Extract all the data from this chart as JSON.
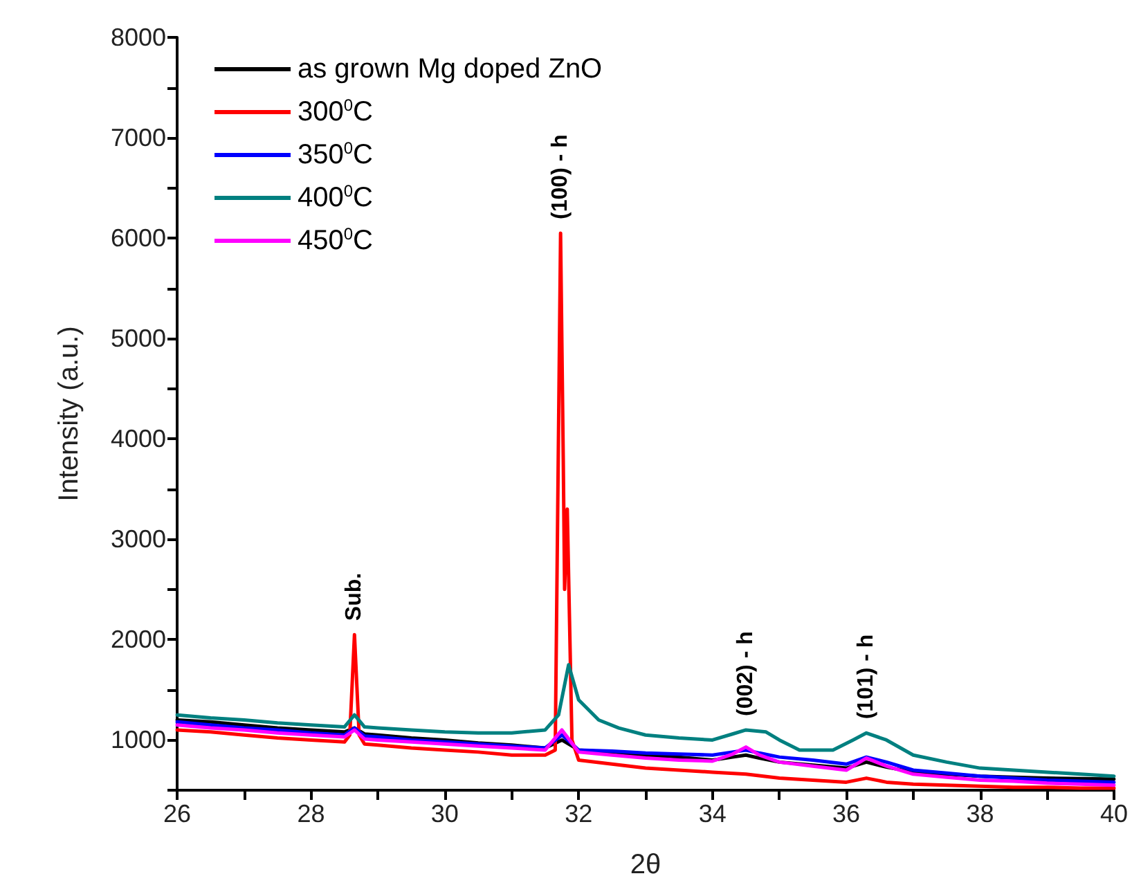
{
  "chart_data": {
    "type": "line",
    "xlabel": "2θ",
    "ylabel": "Intensity (a.u.)",
    "xlim": [
      26,
      40
    ],
    "xticks": [
      26,
      {
        "value": 27,
        "label": null
      },
      28,
      {
        "value": 29,
        "label": null
      },
      30,
      {
        "value": 31,
        "label": null
      },
      32,
      {
        "value": 33,
        "label": null
      },
      34,
      {
        "value": 35,
        "label": null
      },
      36,
      {
        "value": 37,
        "label": null
      },
      38,
      {
        "value": 39,
        "label": null
      },
      40
    ],
    "ylim": [
      500,
      8000
    ],
    "yticks": [
      {
        "value": 500,
        "label": null
      },
      1000,
      {
        "value": 1500,
        "label": null
      },
      2000,
      {
        "value": 2500,
        "label": null
      },
      3000,
      {
        "value": 3500,
        "label": null
      },
      4000,
      {
        "value": 4500,
        "label": null
      },
      5000,
      {
        "value": 5500,
        "label": null
      },
      6000,
      {
        "value": 6500,
        "label": null
      },
      7000,
      {
        "value": 7500,
        "label": null
      },
      8000
    ],
    "grid": false,
    "legend": "top left",
    "marker": "none",
    "line_style": "solid",
    "annotations": [
      {
        "text": "Sub.",
        "x": 28.65,
        "y": 2050
      },
      {
        "text": "(100) - h",
        "x": 31.73,
        "y": 6050
      },
      {
        "text": "(002) - h",
        "x": 34.5,
        "y": 1100
      },
      {
        "text": "(101) - h",
        "x": 36.3,
        "y": 1070
      }
    ],
    "series": [
      {
        "name": "as grown Mg doped ZnO",
        "color": "#000000",
        "x": [
          26,
          26.5,
          27,
          27.5,
          28,
          28.5,
          28.65,
          28.8,
          29,
          29.5,
          30,
          30.5,
          31,
          31.5,
          31.75,
          32,
          32.5,
          33,
          33.5,
          34,
          34.3,
          34.5,
          34.7,
          35,
          35.5,
          36,
          36.3,
          36.6,
          37,
          37.5,
          38,
          38.5,
          39,
          39.5,
          40
        ],
        "values": [
          1200,
          1180,
          1150,
          1120,
          1100,
          1080,
          1120,
          1060,
          1050,
          1020,
          1000,
          970,
          950,
          920,
          1000,
          900,
          880,
          850,
          830,
          800,
          830,
          850,
          820,
          780,
          750,
          720,
          780,
          730,
          680,
          660,
          640,
          630,
          620,
          615,
          610
        ]
      },
      {
        "name": "300$^{0}$C",
        "color": "#ff0000",
        "x": [
          26,
          26.5,
          27,
          27.5,
          28,
          28.5,
          28.58,
          28.65,
          28.72,
          28.8,
          29,
          29.5,
          30,
          30.5,
          31,
          31.5,
          31.65,
          31.73,
          31.77,
          31.79,
          31.83,
          31.9,
          32,
          32.5,
          33,
          33.5,
          34,
          34.5,
          35,
          35.5,
          36,
          36.3,
          36.6,
          37,
          37.5,
          38,
          38.5,
          39,
          39.5,
          40
        ],
        "values": [
          1100,
          1080,
          1050,
          1020,
          1000,
          980,
          1050,
          2050,
          1050,
          960,
          950,
          920,
          900,
          880,
          850,
          850,
          900,
          6050,
          3800,
          2500,
          3300,
          1000,
          800,
          760,
          720,
          700,
          680,
          660,
          620,
          600,
          580,
          620,
          580,
          560,
          550,
          540,
          530,
          530,
          520,
          520
        ]
      },
      {
        "name": "350$^{0}$C",
        "color": "#0000ff",
        "x": [
          26,
          26.5,
          27,
          27.5,
          28,
          28.5,
          28.65,
          28.8,
          29,
          29.5,
          30,
          30.5,
          31,
          31.5,
          31.75,
          32,
          32.5,
          33,
          33.5,
          34,
          34.3,
          34.5,
          34.7,
          35,
          35.5,
          36,
          36.3,
          36.6,
          37,
          37.5,
          38,
          38.5,
          39,
          39.5,
          40
        ],
        "values": [
          1180,
          1150,
          1120,
          1100,
          1070,
          1050,
          1120,
          1040,
          1030,
          1000,
          980,
          960,
          940,
          920,
          1050,
          900,
          890,
          870,
          860,
          850,
          880,
          900,
          870,
          830,
          800,
          760,
          830,
          780,
          700,
          670,
          640,
          620,
          600,
          590,
          580
        ]
      },
      {
        "name": "400$^{0}$C",
        "color": "#008080",
        "x": [
          26,
          26.5,
          27,
          27.5,
          28,
          28.5,
          28.65,
          28.8,
          29,
          29.5,
          30,
          30.5,
          31,
          31.5,
          31.7,
          31.85,
          32,
          32.3,
          32.6,
          33,
          33.5,
          34,
          34.3,
          34.5,
          34.8,
          35,
          35.3,
          35.8,
          36.1,
          36.3,
          36.6,
          37,
          37.5,
          38,
          38.5,
          39,
          39.5,
          40
        ],
        "values": [
          1250,
          1220,
          1200,
          1170,
          1150,
          1130,
          1250,
          1130,
          1120,
          1100,
          1080,
          1070,
          1070,
          1100,
          1250,
          1750,
          1400,
          1200,
          1120,
          1050,
          1020,
          1000,
          1060,
          1100,
          1080,
          1000,
          900,
          900,
          1000,
          1070,
          1000,
          850,
          780,
          720,
          700,
          680,
          660,
          640
        ]
      },
      {
        "name": "450$^{0}$C",
        "color": "#ff00ff",
        "x": [
          26,
          26.5,
          27,
          27.5,
          28,
          28.5,
          28.65,
          28.8,
          29,
          29.5,
          30,
          30.5,
          31,
          31.5,
          31.75,
          32,
          32.5,
          33,
          33.5,
          34,
          34.3,
          34.5,
          34.7,
          35,
          35.5,
          36,
          36.3,
          36.6,
          37,
          37.5,
          38,
          38.5,
          39,
          39.5,
          40
        ],
        "values": [
          1150,
          1120,
          1100,
          1070,
          1050,
          1030,
          1100,
          1010,
          1000,
          980,
          960,
          940,
          920,
          900,
          1100,
          880,
          850,
          820,
          800,
          790,
          860,
          930,
          850,
          780,
          740,
          700,
          820,
          740,
          660,
          630,
          600,
          590,
          570,
          560,
          550
        ]
      }
    ]
  }
}
